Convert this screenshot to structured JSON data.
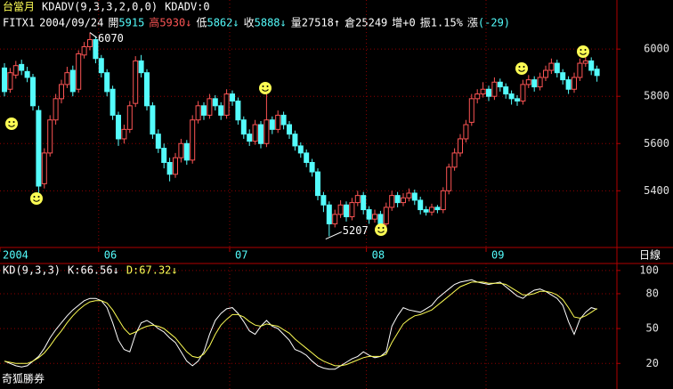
{
  "header": {
    "line1": [
      "台當月",
      "KDADV(9,3,3,2,0,0)",
      "KDADV:0"
    ],
    "line2": [
      [
        {
          "text": "FITX1",
          "color": "#ffffff"
        }
      ],
      [
        {
          "text": "2004/09/24",
          "color": "#ffffff"
        }
      ],
      [
        {
          "text": "開",
          "color": "#ffffff"
        },
        {
          "text": "5915",
          "color": "#54fcfc"
        }
      ],
      [
        {
          "text": "高",
          "color": "#fc5454"
        },
        {
          "text": "5930",
          "color": "#fc5454"
        },
        {
          "text": "↓",
          "color": "#fc5454"
        }
      ],
      [
        {
          "text": "低",
          "color": "#ffffff"
        },
        {
          "text": "5862",
          "color": "#54fcfc"
        },
        {
          "text": "↓",
          "color": "#54fcfc"
        }
      ],
      [
        {
          "text": "收",
          "color": "#ffffff"
        },
        {
          "text": "5888",
          "color": "#54fcfc"
        },
        {
          "text": "↓",
          "color": "#54fcfc"
        }
      ],
      [
        {
          "text": "量",
          "color": "#ffffff"
        },
        {
          "text": "27518",
          "color": "#ffffff"
        },
        {
          "text": "↑",
          "color": "#ffffff"
        }
      ],
      [
        {
          "text": "倉",
          "color": "#ffffff"
        },
        {
          "text": "25249",
          "color": "#ffffff"
        }
      ],
      [
        {
          "text": "增",
          "color": "#ffffff"
        },
        {
          "text": "+0",
          "color": "#ffffff"
        }
      ],
      [
        {
          "text": "振",
          "color": "#ffffff"
        },
        {
          "text": "1.15%",
          "color": "#ffffff"
        }
      ],
      [
        {
          "text": "漲",
          "color": "#ffffff"
        },
        {
          "text": "(-29)",
          "color": "#54fcfc"
        }
      ]
    ]
  },
  "chart_data": [
    {
      "type": "candlestick",
      "categories": [
        "2004",
        null,
        null,
        null,
        null,
        null,
        null,
        null,
        null,
        null,
        null,
        null,
        null,
        null,
        null,
        null,
        null,
        "06",
        null,
        null,
        null,
        null,
        null,
        null,
        null,
        null,
        null,
        null,
        null,
        null,
        null,
        null,
        null,
        null,
        null,
        null,
        null,
        null,
        null,
        null,
        "07",
        null,
        null,
        null,
        null,
        null,
        null,
        null,
        null,
        null,
        null,
        null,
        null,
        null,
        null,
        null,
        null,
        null,
        null,
        null,
        null,
        null,
        null,
        null,
        "08",
        null,
        null,
        null,
        null,
        null,
        null,
        null,
        null,
        null,
        null,
        null,
        null,
        null,
        null,
        null,
        null,
        null,
        null,
        null,
        null,
        "09",
        null,
        null,
        null,
        null,
        null,
        null,
        null,
        null,
        null,
        null,
        null,
        null,
        null,
        null,
        null,
        null,
        null,
        null,
        null
      ],
      "open": [
        5920,
        5830,
        5890,
        5935,
        5905,
        5880,
        5740,
        5430,
        5560,
        5700,
        5790,
        5850,
        5910,
        5830,
        5975,
        6010,
        6040,
        5960,
        5900,
        5830,
        5720,
        5620,
        5660,
        5770,
        5950,
        5900,
        5760,
        5640,
        5580,
        5520,
        5470,
        5540,
        5600,
        5530,
        5700,
        5760,
        5720,
        5790,
        5760,
        5720,
        5810,
        5780,
        5700,
        5640,
        5610,
        5680,
        5600,
        5700,
        5660,
        5720,
        5680,
        5640,
        5590,
        5560,
        5520,
        5480,
        5380,
        5340,
        5260,
        5300,
        5340,
        5290,
        5350,
        5380,
        5320,
        5280,
        5300,
        5260,
        5330,
        5380,
        5350,
        5370,
        5390,
        5360,
        5320,
        5310,
        5330,
        5320,
        5400,
        5500,
        5560,
        5620,
        5690,
        5790,
        5810,
        5830,
        5800,
        5860,
        5840,
        5810,
        5790,
        5780,
        5850,
        5870,
        5840,
        5880,
        5910,
        5940,
        5900,
        5870,
        5830,
        5880,
        5940,
        5950,
        5915
      ],
      "high": [
        5940,
        5920,
        5950,
        5955,
        5925,
        5895,
        5760,
        5580,
        5720,
        5810,
        5870,
        5925,
        5930,
        5995,
        6030,
        6070,
        6055,
        5975,
        5915,
        5845,
        5735,
        5680,
        5780,
        5970,
        5975,
        5915,
        5775,
        5660,
        5600,
        5540,
        5560,
        5620,
        5615,
        5720,
        5780,
        5775,
        5810,
        5805,
        5775,
        5830,
        5825,
        5795,
        5715,
        5660,
        5700,
        5695,
        5850,
        5715,
        5740,
        5735,
        5695,
        5655,
        5605,
        5575,
        5535,
        5495,
        5395,
        5355,
        5320,
        5360,
        5355,
        5370,
        5400,
        5395,
        5335,
        5320,
        5315,
        5350,
        5400,
        5395,
        5390,
        5410,
        5405,
        5375,
        5335,
        5345,
        5340,
        5415,
        5515,
        5580,
        5640,
        5700,
        5810,
        5830,
        5860,
        5845,
        5880,
        5875,
        5855,
        5825,
        5805,
        5870,
        5890,
        5885,
        5900,
        5930,
        5960,
        5955,
        5915,
        5885,
        5900,
        5960,
        5975,
        5965,
        5930
      ],
      "low": [
        5800,
        5815,
        5875,
        5890,
        5860,
        5740,
        5380,
        5410,
        5545,
        5680,
        5770,
        5835,
        5800,
        5815,
        5960,
        5995,
        5940,
        5880,
        5800,
        5700,
        5590,
        5600,
        5645,
        5755,
        5880,
        5740,
        5620,
        5560,
        5495,
        5440,
        5455,
        5520,
        5510,
        5515,
        5685,
        5700,
        5705,
        5740,
        5700,
        5705,
        5760,
        5680,
        5620,
        5590,
        5595,
        5580,
        5585,
        5640,
        5645,
        5660,
        5620,
        5570,
        5540,
        5500,
        5460,
        5360,
        5310,
        5207,
        5245,
        5285,
        5270,
        5275,
        5335,
        5300,
        5260,
        5265,
        5240,
        5245,
        5315,
        5330,
        5335,
        5355,
        5340,
        5300,
        5295,
        5295,
        5305,
        5305,
        5385,
        5485,
        5545,
        5605,
        5675,
        5770,
        5795,
        5780,
        5785,
        5820,
        5790,
        5765,
        5760,
        5765,
        5835,
        5820,
        5825,
        5865,
        5895,
        5880,
        5850,
        5810,
        5815,
        5865,
        5925,
        5890,
        5862
      ],
      "close": [
        5820,
        5900,
        5930,
        5910,
        5880,
        5760,
        5420,
        5560,
        5700,
        5790,
        5850,
        5900,
        5820,
        5980,
        6010,
        6040,
        5960,
        5900,
        5820,
        5720,
        5620,
        5660,
        5760,
        5950,
        5900,
        5760,
        5640,
        5580,
        5520,
        5470,
        5540,
        5600,
        5530,
        5700,
        5760,
        5720,
        5790,
        5760,
        5720,
        5810,
        5780,
        5700,
        5640,
        5610,
        5680,
        5600,
        5700,
        5660,
        5720,
        5680,
        5640,
        5590,
        5560,
        5520,
        5480,
        5380,
        5340,
        5260,
        5300,
        5340,
        5290,
        5350,
        5380,
        5320,
        5280,
        5300,
        5260,
        5330,
        5380,
        5350,
        5370,
        5390,
        5360,
        5320,
        5310,
        5330,
        5320,
        5400,
        5500,
        5560,
        5620,
        5680,
        5790,
        5810,
        5830,
        5800,
        5860,
        5840,
        5810,
        5790,
        5780,
        5850,
        5870,
        5840,
        5880,
        5910,
        5940,
        5900,
        5870,
        5830,
        5880,
        5940,
        5950,
        5910,
        5888
      ],
      "up_color": "#fc5454",
      "down_color": "#54fcfc",
      "ylim": [
        5160,
        6140
      ],
      "yticks": [
        5400,
        5600,
        5800,
        6000
      ],
      "grid": true,
      "annotations": [
        {
          "text": "6070"
        },
        {
          "text": "5207"
        }
      ],
      "period_label": "日線"
    },
    {
      "type": "line",
      "title": "KD(9,3,3)",
      "series": [
        {
          "name": "K:66.56↓",
          "color": "#ffffff",
          "values": [
            22,
            20,
            18,
            17,
            18,
            22,
            26,
            33,
            42,
            49,
            55,
            61,
            66,
            70,
            74,
            76,
            76,
            74,
            68,
            55,
            40,
            32,
            30,
            45,
            55,
            57,
            54,
            50,
            47,
            42,
            38,
            30,
            22,
            18,
            22,
            30,
            45,
            57,
            63,
            67,
            68,
            63,
            56,
            48,
            45,
            52,
            57,
            52,
            50,
            45,
            40,
            32,
            30,
            27,
            22,
            18,
            16,
            15,
            15,
            18,
            21,
            24,
            26,
            30,
            27,
            25,
            26,
            30,
            52,
            61,
            68,
            66,
            65,
            64,
            67,
            70,
            76,
            80,
            84,
            88,
            90,
            91,
            92,
            90,
            89,
            88,
            89,
            90,
            86,
            82,
            78,
            76,
            80,
            83,
            84,
            82,
            79,
            76,
            70,
            56,
            45,
            58,
            64,
            68,
            66.56
          ]
        },
        {
          "name": "D:67.32↓",
          "color": "#fcfc54",
          "values": [
            22,
            21,
            20,
            20,
            20,
            22,
            25,
            29,
            35,
            42,
            48,
            55,
            61,
            66,
            70,
            73,
            74,
            74,
            72,
            66,
            58,
            50,
            45,
            47,
            50,
            52,
            53,
            52,
            50,
            46,
            42,
            36,
            30,
            26,
            25,
            28,
            35,
            45,
            53,
            58,
            62,
            62,
            60,
            56,
            53,
            52,
            54,
            53,
            52,
            49,
            46,
            41,
            37,
            33,
            29,
            25,
            22,
            20,
            18,
            18,
            19,
            21,
            23,
            25,
            26,
            26,
            26,
            28,
            38,
            46,
            54,
            58,
            61,
            62,
            64,
            66,
            70,
            74,
            78,
            82,
            86,
            88,
            90,
            90,
            90,
            89,
            89,
            89,
            88,
            85,
            82,
            79,
            79,
            80,
            82,
            82,
            81,
            79,
            75,
            68,
            60,
            59,
            61,
            64,
            67.32
          ]
        }
      ],
      "ylim": [
        -2,
        106
      ],
      "yticks": [
        20,
        50,
        80,
        100
      ],
      "grid": true
    }
  ],
  "footer": "奇狐勝券"
}
